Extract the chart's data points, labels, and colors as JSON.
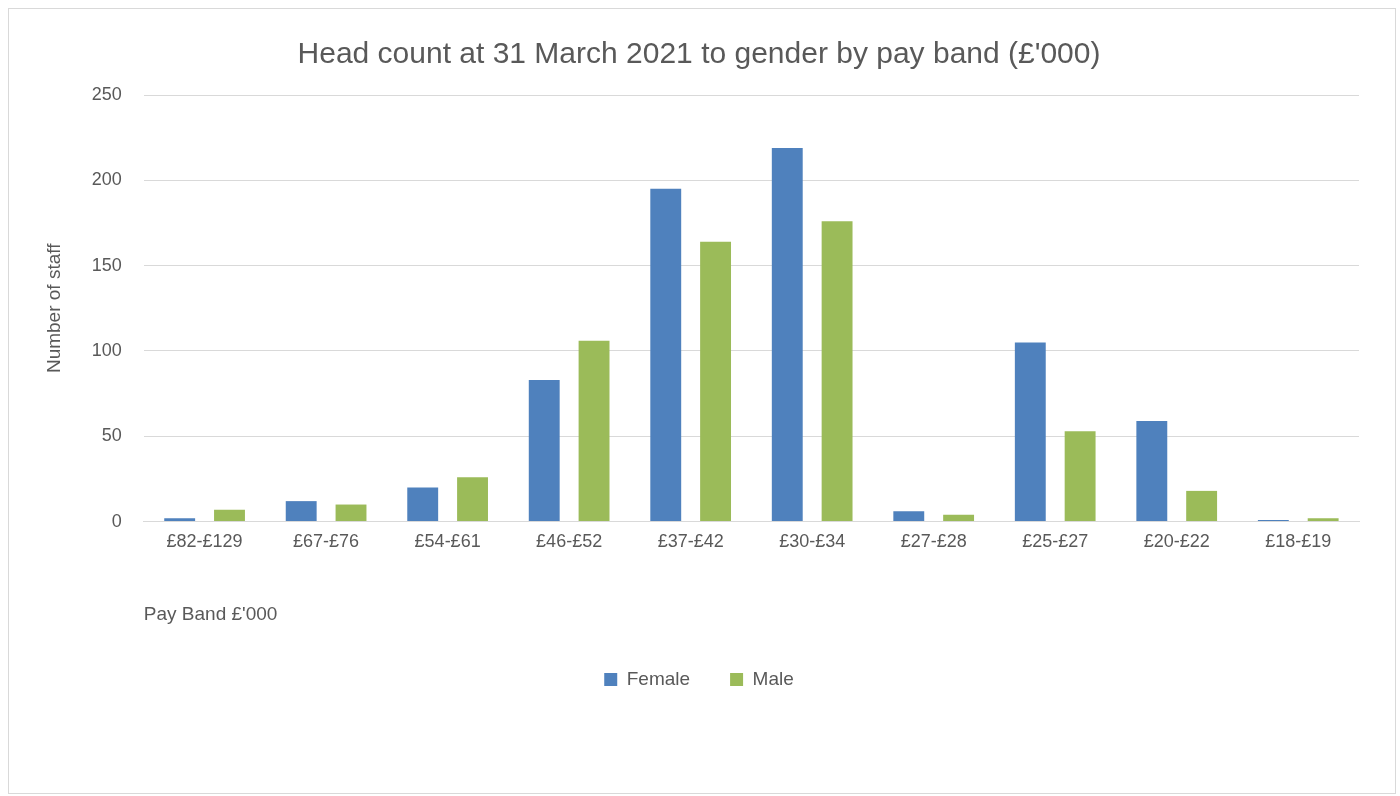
{
  "chart_data": {
    "type": "bar",
    "title": "Head count at 31 March 2021 to gender by pay band (£'000)",
    "xlabel": "Pay Band £'000",
    "ylabel": "Number of staff",
    "categories": [
      "£82-£129",
      "£67-£76",
      "£54-£61",
      "£46-£52",
      "£37-£42",
      "£30-£34",
      "£27-£28",
      "£25-£27",
      "£20-£22",
      "£18-£19"
    ],
    "series": [
      {
        "name": "Female",
        "color": "#4f81bd",
        "values": [
          2,
          12,
          20,
          83,
          195,
          219,
          6,
          105,
          59,
          1
        ]
      },
      {
        "name": "Male",
        "color": "#9bbb59",
        "values": [
          7,
          10,
          26,
          106,
          164,
          176,
          4,
          53,
          18,
          2
        ]
      }
    ],
    "ylim": [
      0,
      250
    ],
    "yticks": [
      0,
      50,
      100,
      150,
      200,
      250
    ],
    "grid": "y",
    "legend": "bottom"
  }
}
